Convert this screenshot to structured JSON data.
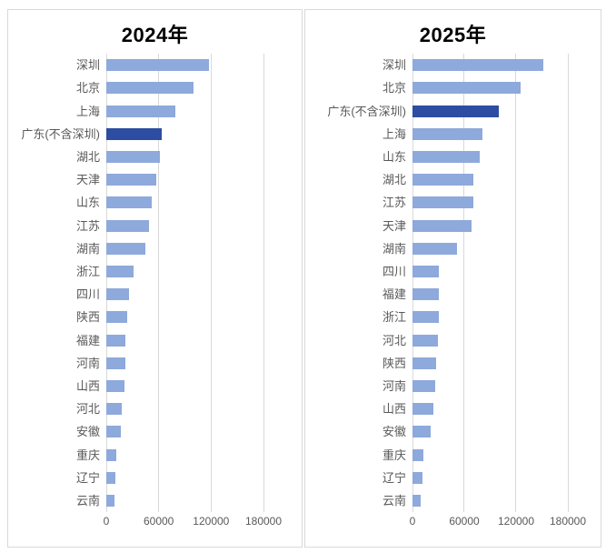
{
  "window": {
    "background": "#FFFFFF"
  },
  "colors": {
    "bar_light": "#8EA9DB",
    "bar_dark": "#2C4DA1",
    "gridline": "#D9D9D9",
    "panel_border": "#D9D9D9",
    "axis_text": "#595959",
    "title_text": "#000000"
  },
  "chart_data": [
    {
      "type": "bar",
      "orientation": "horizontal",
      "title": "2024年",
      "categories": [
        "深圳",
        "北京",
        "上海",
        "广东(不含深圳)",
        "湖北",
        "天津",
        "山东",
        "江苏",
        "湖南",
        "浙江",
        "四川",
        "陕西",
        "福建",
        "河南",
        "山西",
        "河北",
        "安徽",
        "重庆",
        "辽宁",
        "云南"
      ],
      "values": [
        118000,
        100000,
        79000,
        63000,
        61000,
        57000,
        52000,
        49000,
        45000,
        31000,
        26000,
        24000,
        22000,
        21500,
        20500,
        18000,
        16500,
        11000,
        10500,
        9000
      ],
      "highlight_category": "广东(不含深圳)",
      "highlight_index": 3,
      "xlim": [
        0,
        180000
      ],
      "x_tick_labels": [
        "0",
        "60000",
        "120000",
        "180000"
      ],
      "x_tick_values": [
        0,
        60000,
        120000,
        180000
      ],
      "grid": true,
      "legend": false
    },
    {
      "type": "bar",
      "orientation": "horizontal",
      "title": "2025年",
      "categories": [
        "深圳",
        "北京",
        "广东(不含深圳)",
        "上海",
        "山东",
        "湖北",
        "江苏",
        "天津",
        "湖南",
        "四川",
        "福建",
        "浙江",
        "河北",
        "陕西",
        "河南",
        "山西",
        "安徽",
        "重庆",
        "辽宁",
        "云南"
      ],
      "values": [
        152000,
        125000,
        100000,
        81000,
        78000,
        71000,
        70000,
        68500,
        52000,
        31000,
        30500,
        30000,
        29000,
        27500,
        26000,
        24000,
        21500,
        13000,
        12000,
        10000
      ],
      "highlight_category": "广东(不含深圳)",
      "highlight_index": 2,
      "xlim": [
        0,
        180000
      ],
      "x_tick_labels": [
        "0",
        "60000",
        "120000",
        "180000"
      ],
      "x_tick_values": [
        0,
        60000,
        120000,
        180000
      ],
      "grid": true,
      "legend": false
    }
  ]
}
